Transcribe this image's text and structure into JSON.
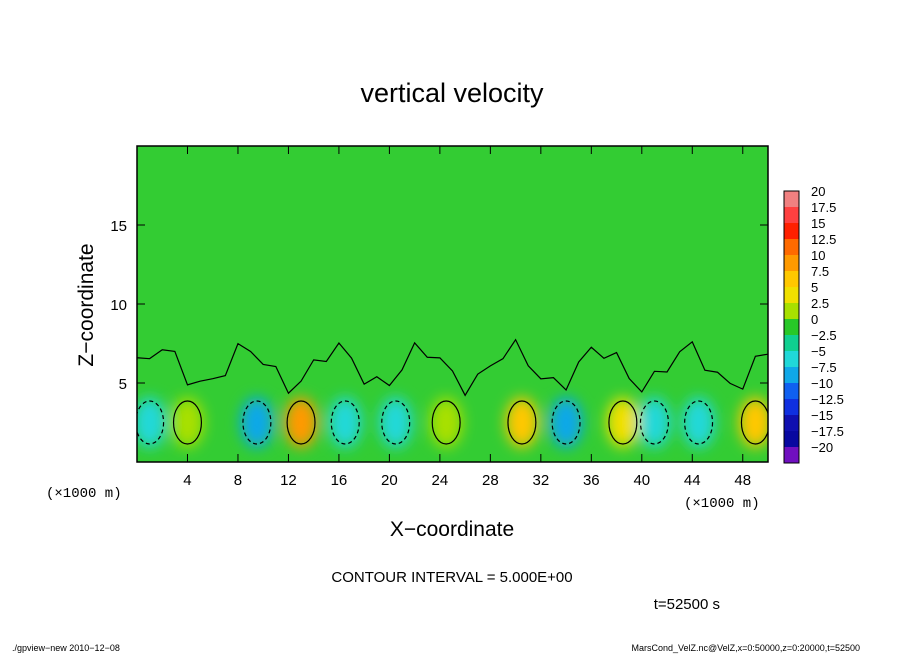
{
  "chart_data": {
    "type": "heatmap",
    "title": "vertical velocity",
    "xlabel": "X−coordinate",
    "ylabel": "Z−coordinate",
    "x_unit": "(×1000 m)",
    "y_unit": "(×1000 m)",
    "xlim": [
      0,
      50
    ],
    "ylim": [
      0,
      20
    ],
    "x_ticks": [
      4,
      8,
      12,
      16,
      20,
      24,
      28,
      32,
      36,
      40,
      44,
      48
    ],
    "y_ticks": [
      5,
      10,
      15
    ],
    "colorbar": {
      "labels": [
        "20",
        "17.5",
        "15",
        "12.5",
        "10",
        "7.5",
        "5",
        "2.5",
        "0",
        "−2.5",
        "−5",
        "−7.5",
        "−10",
        "−12.5",
        "−15",
        "−17.5",
        "−20"
      ],
      "colors": [
        "#f08080",
        "#ff4040",
        "#ff2000",
        "#ff6a00",
        "#ff9a00",
        "#ffc800",
        "#f0e000",
        "#a8e000",
        "#28c828",
        "#10d090",
        "#20d8d8",
        "#10a8e8",
        "#1060f0",
        "#1030e0",
        "#1010b0",
        "#0808a0",
        "#7010c0"
      ]
    },
    "contour_interval": 5,
    "cells": [
      {
        "x": 1.0,
        "z": 2.5,
        "w": -5
      },
      {
        "x": 4.0,
        "z": 2.5,
        "w": 2.5
      },
      {
        "x": 9.5,
        "z": 2.5,
        "w": -7.5
      },
      {
        "x": 13.0,
        "z": 2.5,
        "w": 10
      },
      {
        "x": 16.5,
        "z": 2.5,
        "w": -5
      },
      {
        "x": 20.5,
        "z": 2.5,
        "w": -5
      },
      {
        "x": 24.5,
        "z": 2.5,
        "w": 2.5
      },
      {
        "x": 30.5,
        "z": 2.5,
        "w": 7.5
      },
      {
        "x": 34.0,
        "z": 2.5,
        "w": -7.5
      },
      {
        "x": 38.5,
        "z": 2.5,
        "w": 5
      },
      {
        "x": 41.0,
        "z": 2.5,
        "w": -5
      },
      {
        "x": 44.5,
        "z": 2.5,
        "w": -5
      },
      {
        "x": 49.0,
        "z": 2.5,
        "w": 7.5
      }
    ]
  },
  "contour_interval_text": "CONTOUR INTERVAL = 5.000E+00",
  "time_text": "t=52500 s",
  "footer_left": "./gpview−new  2010−12−08",
  "footer_right": "MarsCond_VelZ.nc@VelZ,x=0:50000,z=0:20000,t=52500"
}
